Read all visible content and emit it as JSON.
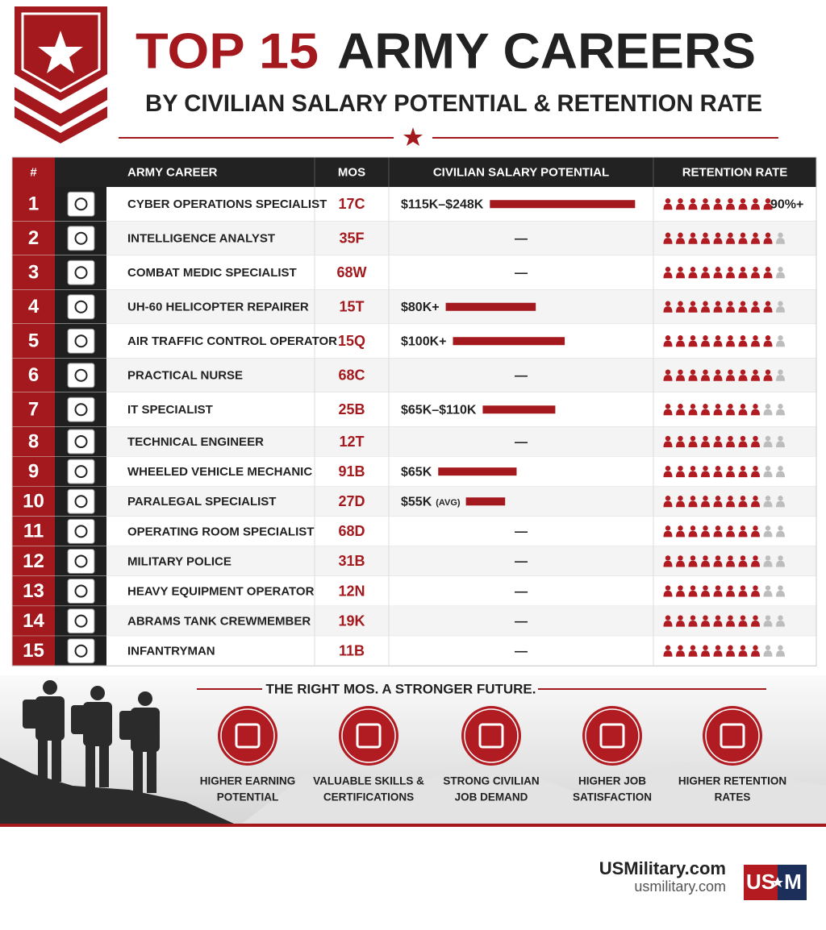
{
  "header": {
    "title_top": "TOP 15",
    "title_rest": "ARMY CAREERS",
    "subtitle": "BY CIVILIAN SALARY POTENTIAL & RETENTION RATE"
  },
  "table": {
    "columns": [
      "#",
      "ARMY CAREER",
      "MOS",
      "CIVILIAN SALARY POTENTIAL",
      "RETENTION RATE"
    ],
    "retention_scale": 10,
    "rows": [
      {
        "rank": 1,
        "career": "CYBER OPERATIONS SPECIALIST",
        "mos": "17C",
        "salary": "$115K–$248K",
        "salary_bar": 100,
        "retention": 9,
        "retention_label": "90%+"
      },
      {
        "rank": 2,
        "career": "INTELLIGENCE ANALYST",
        "mos": "35F",
        "salary": "—",
        "retention": 9
      },
      {
        "rank": 3,
        "career": "COMBAT MEDIC SPECIALIST",
        "mos": "68W",
        "salary": "—",
        "retention": 9
      },
      {
        "rank": 4,
        "career": "UH-60 HELICOPTER REPAIRER",
        "mos": "15T",
        "salary": "$80K+",
        "salary_bar": 62,
        "retention": 9
      },
      {
        "rank": 5,
        "career": "AIR TRAFFIC CONTROL OPERATOR",
        "mos": "15Q",
        "salary": "$100K+",
        "salary_bar": 77,
        "retention": 9
      },
      {
        "rank": 6,
        "career": "PRACTICAL NURSE",
        "mos": "68C",
        "salary": "—",
        "retention": 9
      },
      {
        "rank": 7,
        "career": "IT SPECIALIST",
        "mos": "25B",
        "salary": "$65K–$110K",
        "salary_bar": 50,
        "retention": 8
      },
      {
        "rank": 8,
        "career": "TECHNICAL ENGINEER",
        "mos": "12T",
        "salary": "—",
        "retention": 8
      },
      {
        "rank": 9,
        "career": "WHEELED VEHICLE MECHANIC",
        "mos": "91B",
        "salary": "$65K",
        "salary_bar": 54,
        "retention": 8
      },
      {
        "rank": 10,
        "career": "PARALEGAL SPECIALIST",
        "mos": "27D",
        "salary": "$55K",
        "salary_note": "(AVG)",
        "salary_bar": 27,
        "retention": 8
      },
      {
        "rank": 11,
        "career": "OPERATING ROOM SPECIALIST",
        "mos": "68D",
        "salary": "—",
        "retention": 8
      },
      {
        "rank": 12,
        "career": "MILITARY POLICE",
        "mos": "31B",
        "salary": "—",
        "retention": 8
      },
      {
        "rank": 13,
        "career": "HEAVY EQUIPMENT OPERATOR",
        "mos": "12N",
        "salary": "—",
        "retention": 8
      },
      {
        "rank": 14,
        "career": "ABRAMS TANK CREWMEMBER",
        "mos": "19K",
        "salary": "—",
        "retention": 8
      },
      {
        "rank": 15,
        "career": "INFANTRYMAN",
        "mos": "11B",
        "salary": "—",
        "retention": 8
      }
    ]
  },
  "banner": {
    "tagline": "THE RIGHT MOS. A STRONGER FUTURE.",
    "benefits": [
      [
        "HIGHER EARNING",
        "POTENTIAL"
      ],
      [
        "VALUABLE SKILLS &",
        "CERTIFICATIONS"
      ],
      [
        "STRONG CIVILIAN",
        "JOB DEMAND"
      ],
      [
        "HIGHER JOB",
        "SATISFACTION"
      ],
      [
        "HIGHER RETENTION",
        "RATES"
      ]
    ]
  },
  "footer": {
    "brand": "USMilitary.com",
    "url": "usmilitary.com",
    "logo_left": "US",
    "logo_right": "M"
  }
}
